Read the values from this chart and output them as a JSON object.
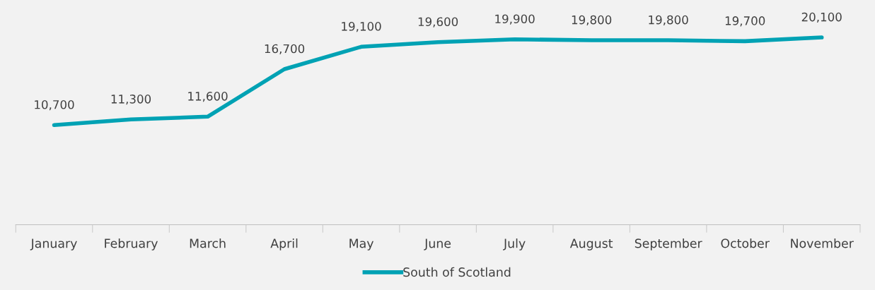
{
  "chart_data": {
    "type": "line",
    "categories": [
      "January",
      "February",
      "March",
      "April",
      "May",
      "June",
      "July",
      "August",
      "September",
      "October",
      "November"
    ],
    "series": [
      {
        "name": "South of Scotland",
        "color": "#00a2b4",
        "values": [
          10700,
          11300,
          11600,
          16700,
          19100,
          19600,
          19900,
          19800,
          19800,
          19700,
          20100
        ],
        "value_labels": [
          "10,700",
          "11,300",
          "11,600",
          "16,700",
          "19,100",
          "19,600",
          "19,900",
          "19,800",
          "19,800",
          "19,700",
          "20,100"
        ]
      }
    ],
    "tick_labels": "x",
    "grid": false,
    "legend": "bottom",
    "marker": "none",
    "line_style": "solid"
  }
}
